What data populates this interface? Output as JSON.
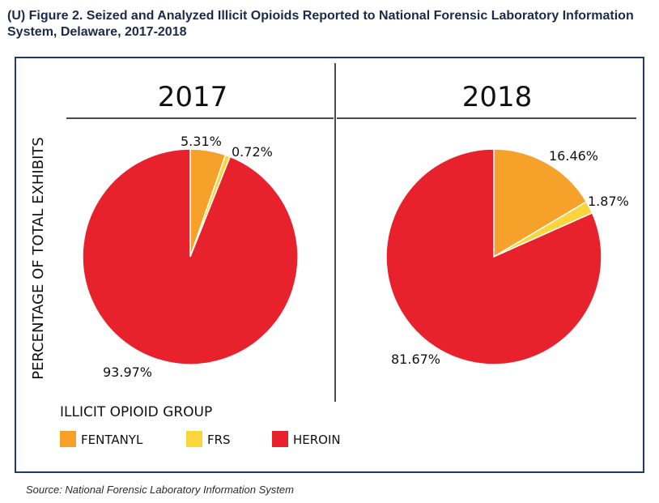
{
  "figure": {
    "title": "(U) Figure 2. Seized and Analyzed Illicit Opioids Reported to National Forensic Laboratory Information System, Delaware, 2017-2018",
    "source": "Source: National Forensic Laboratory Information System"
  },
  "chart_data": {
    "type": "pie",
    "ylabel": "PERCENTAGE OF TOTAL EXHIBITS",
    "legend_title": "ILLICIT OPIOID GROUP",
    "legend_placement": "bottom-left",
    "categories": [
      "FENTANYL",
      "FRS",
      "HEROIN"
    ],
    "colors": [
      "#f6a12a",
      "#fbd53c",
      "#e8222d"
    ],
    "panels": [
      {
        "name": "2017",
        "values": [
          5.31,
          0.72,
          93.97
        ],
        "labels": [
          "5.31%",
          "0.72%",
          "93.97%"
        ]
      },
      {
        "name": "2018",
        "values": [
          16.46,
          1.87,
          81.67
        ],
        "labels": [
          "16.46%",
          "1.87%",
          "81.67%"
        ]
      }
    ]
  }
}
